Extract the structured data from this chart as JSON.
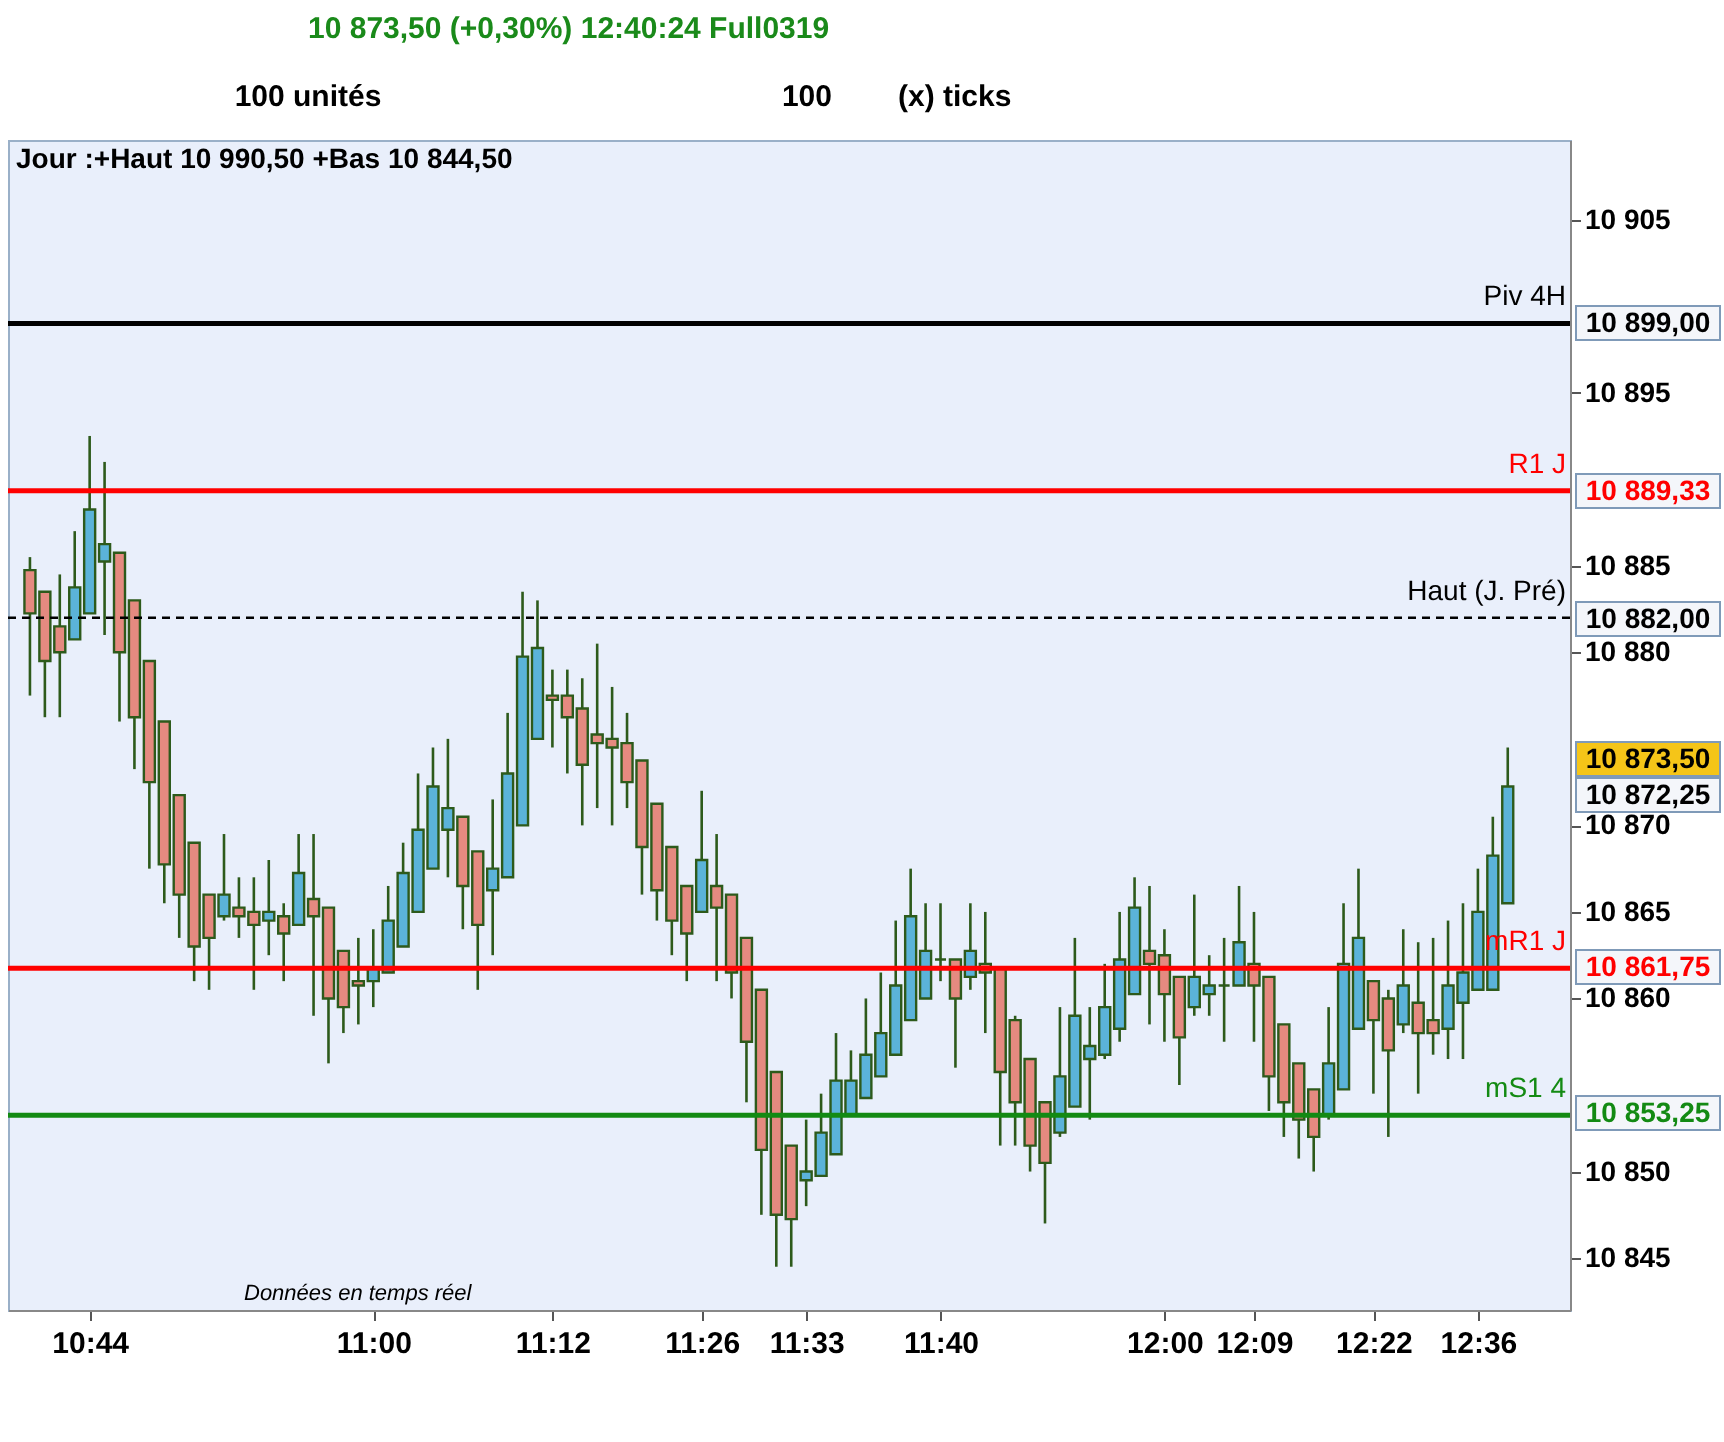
{
  "chart_data": {
    "type": "candlestick",
    "title": "10 873,50 (+0,30%)  12:40:24 Full0319",
    "subtitle": "Jour :+Haut 10 990,50 +Bas 10 844,50",
    "categories": [
      null,
      null,
      null,
      null,
      "10:44",
      null,
      null,
      null,
      null,
      null,
      null,
      null,
      null,
      null,
      null,
      null,
      null,
      null,
      null,
      null,
      null,
      null,
      null,
      "11:00",
      null,
      null,
      null,
      null,
      null,
      null,
      null,
      null,
      null,
      null,
      null,
      "11:12",
      null,
      null,
      null,
      null,
      null,
      null,
      null,
      null,
      null,
      "11:26",
      null,
      null,
      null,
      null,
      null,
      null,
      "11:33",
      null,
      null,
      null,
      null,
      null,
      null,
      null,
      null,
      "11:40",
      null,
      null,
      null,
      null,
      null,
      null,
      null,
      null,
      null,
      null,
      null,
      null,
      null,
      null,
      "12:00",
      null,
      null,
      null,
      null,
      null,
      "12:09",
      null,
      null,
      null,
      null,
      null,
      null,
      null,
      "12:22",
      null,
      null,
      null,
      null,
      null,
      null,
      "12:36",
      null,
      null
    ],
    "ohlc": [
      [
        10884.75,
        10885.5,
        10877.5,
        10882.25
      ],
      [
        10883.5,
        10883.5,
        10876.25,
        10879.5
      ],
      [
        10881.5,
        10884.5,
        10876.25,
        10880
      ],
      [
        10880.75,
        10887,
        10880.75,
        10883.75
      ],
      [
        10882.25,
        10892.5,
        10882.25,
        10888.25
      ],
      [
        10885.25,
        10891,
        10881,
        10886.25
      ],
      [
        10885.75,
        10885.75,
        10876,
        10880
      ],
      [
        10883,
        10883,
        10873.25,
        10876.25
      ],
      [
        10879.5,
        10879.5,
        10867.5,
        10872.5
      ],
      [
        10876,
        10876,
        10865.5,
        10867.75
      ],
      [
        10871.75,
        10871.75,
        10863.5,
        10866
      ],
      [
        10869,
        10869,
        10861,
        10863
      ],
      [
        10866,
        10866,
        10860.5,
        10863.5
      ],
      [
        10864.75,
        10869.5,
        10864.5,
        10866
      ],
      [
        10865.25,
        10867,
        10863.5,
        10864.75
      ],
      [
        10865,
        10867,
        10860.5,
        10864.25
      ],
      [
        10864.5,
        10868,
        10862.5,
        10865
      ],
      [
        10864.75,
        10865.5,
        10861,
        10863.75
      ],
      [
        10864.25,
        10869.5,
        10864.25,
        10867.25
      ],
      [
        10865.75,
        10869.5,
        10859,
        10864.75
      ],
      [
        10865.25,
        10865.25,
        10856.25,
        10860
      ],
      [
        10862.75,
        10862.75,
        10858,
        10859.5
      ],
      [
        10861,
        10863.5,
        10858.5,
        10860.75
      ],
      [
        10861,
        10864,
        10859.5,
        10861.75
      ],
      [
        10861.5,
        10866.5,
        10861.5,
        10864.5
      ],
      [
        10863,
        10869,
        10863,
        10867.25
      ],
      [
        10865,
        10873,
        10865,
        10869.75
      ],
      [
        10867.5,
        10874.5,
        10867.5,
        10872.25
      ],
      [
        10869.75,
        10875,
        10867,
        10871
      ],
      [
        10870.5,
        10870.5,
        10864,
        10866.5
      ],
      [
        10868.5,
        10868.5,
        10860.5,
        10864.25
      ],
      [
        10866.25,
        10871.5,
        10862.5,
        10867.5
      ],
      [
        10867,
        10876.5,
        10867,
        10873
      ],
      [
        10870,
        10883.5,
        10870,
        10879.75
      ],
      [
        10875,
        10883,
        10875,
        10880.25
      ],
      [
        10877.5,
        10879,
        10874.5,
        10877.25
      ],
      [
        10877.5,
        10879,
        10873,
        10876.25
      ],
      [
        10876.75,
        10878.5,
        10870,
        10873.5
      ],
      [
        10875.25,
        10880.5,
        10871,
        10874.75
      ],
      [
        10875,
        10878,
        10870,
        10874.5
      ],
      [
        10874.75,
        10876.5,
        10871,
        10872.5
      ],
      [
        10873.75,
        10873.75,
        10866,
        10868.75
      ],
      [
        10871.25,
        10871.25,
        10864.5,
        10866.25
      ],
      [
        10868.75,
        10868.75,
        10862.5,
        10864.5
      ],
      [
        10866.5,
        10866.5,
        10861,
        10863.75
      ],
      [
        10865,
        10872,
        10865,
        10868
      ],
      [
        10866.5,
        10869.5,
        10861,
        10865.25
      ],
      [
        10866,
        10866,
        10860,
        10861.5
      ],
      [
        10863.5,
        10863.5,
        10854,
        10857.5
      ],
      [
        10860.5,
        10860.5,
        10847.5,
        10851.25
      ],
      [
        10855.75,
        10855.75,
        10844.5,
        10847.5
      ],
      [
        10851.5,
        10851.5,
        10844.5,
        10847.25
      ],
      [
        10849.5,
        10853,
        10848,
        10850
      ],
      [
        10849.75,
        10854.5,
        10849.75,
        10852.25
      ],
      [
        10851,
        10858,
        10851,
        10855.25
      ],
      [
        10853.25,
        10857,
        10853.25,
        10855.25
      ],
      [
        10854.25,
        10860,
        10854.25,
        10856.75
      ],
      [
        10855.5,
        10861.5,
        10855.5,
        10858
      ],
      [
        10856.75,
        10864.5,
        10856.75,
        10860.75
      ],
      [
        10858.75,
        10867.5,
        10858.75,
        10864.75
      ],
      [
        10860,
        10865.5,
        10860,
        10862.75
      ],
      [
        10862.25,
        10865.5,
        10861,
        10862.25
      ],
      [
        10862.25,
        10862.25,
        10856,
        10860
      ],
      [
        10861.25,
        10865.5,
        10860.5,
        10862.75
      ],
      [
        10862,
        10865,
        10858,
        10861.5
      ],
      [
        10861.75,
        10861.75,
        10851.5,
        10855.75
      ],
      [
        10858.75,
        10859,
        10851.5,
        10854
      ],
      [
        10856.5,
        10856.5,
        10850,
        10851.5
      ],
      [
        10854,
        10854,
        10847,
        10850.5
      ],
      [
        10852.25,
        10859.5,
        10852,
        10855.5
      ],
      [
        10853.75,
        10863.5,
        10853.75,
        10859
      ],
      [
        10856.5,
        10859.5,
        10853,
        10857.25
      ],
      [
        10856.75,
        10862,
        10856.5,
        10859.5
      ],
      [
        10858.25,
        10865,
        10857.5,
        10862.25
      ],
      [
        10860.25,
        10867,
        10860.25,
        10865.25
      ],
      [
        10862.75,
        10866.5,
        10858.5,
        10862
      ],
      [
        10862.5,
        10864,
        10857.5,
        10860.25
      ],
      [
        10861.25,
        10861.25,
        10855,
        10857.75
      ],
      [
        10859.5,
        10866,
        10859,
        10861.25
      ],
      [
        10860.25,
        10862.5,
        10859,
        10860.75
      ],
      [
        10860.75,
        10863.5,
        10857.5,
        10860.75
      ],
      [
        10860.75,
        10866.5,
        10860.75,
        10863.25
      ],
      [
        10862,
        10865,
        10857.5,
        10860.75
      ],
      [
        10861.25,
        10861.25,
        10853.5,
        10855.5
      ],
      [
        10858.5,
        10858.5,
        10852,
        10854
      ],
      [
        10856.25,
        10856.25,
        10850.75,
        10853
      ],
      [
        10854.75,
        10854.75,
        10850,
        10852
      ],
      [
        10853.25,
        10859.5,
        10853,
        10856.25
      ],
      [
        10854.75,
        10865.5,
        10854.75,
        10862
      ],
      [
        10858.25,
        10867.5,
        10858.25,
        10863.5
      ],
      [
        10861,
        10861,
        10854.5,
        10858.75
      ],
      [
        10860,
        10860.5,
        10852,
        10857
      ],
      [
        10858.5,
        10864,
        10858,
        10860.75
      ],
      [
        10859.75,
        10863.25,
        10854.5,
        10858
      ],
      [
        10858.75,
        10863.5,
        10856.75,
        10858
      ],
      [
        10858.25,
        10864.5,
        10856.5,
        10860.75
      ],
      [
        10859.75,
        10865.5,
        10856.5,
        10861.5
      ],
      [
        10860.5,
        10867.5,
        10860.5,
        10865
      ],
      [
        10860.5,
        10870.5,
        10860.5,
        10868.25
      ],
      [
        10865.5,
        10874.5,
        10865.5,
        10872.25
      ]
    ],
    "colors": [
      "#e58a80",
      "#e58a80",
      "#e58a80",
      "#5bb3d9",
      "#5bb3d9",
      "#5bb3d9",
      "#e58a80",
      "#e58a80",
      "#e58a80",
      "#e58a80",
      "#e58a80",
      "#e58a80",
      "#e58a80",
      "#5bb3d9",
      "#e58a80",
      "#e58a80",
      "#5bb3d9",
      "#e58a80",
      "#5bb3d9",
      "#e58a80",
      "#e58a80",
      "#e58a80",
      "#e58a80",
      "#5bb3d9",
      "#5bb3d9",
      "#5bb3d9",
      "#5bb3d9",
      "#5bb3d9",
      "#5bb3d9",
      "#e58a80",
      "#e58a80",
      "#5bb3d9",
      "#5bb3d9",
      "#5bb3d9",
      "#5bb3d9",
      "#e58a80",
      "#e58a80",
      "#e58a80",
      "#e58a80",
      "#e58a80",
      "#e58a80",
      "#e58a80",
      "#e58a80",
      "#e58a80",
      "#e58a80",
      "#5bb3d9",
      "#e58a80",
      "#e58a80",
      "#e58a80",
      "#e58a80",
      "#e58a80",
      "#e58a80",
      "#5bb3d9",
      "#5bb3d9",
      "#5bb3d9",
      "#5bb3d9",
      "#5bb3d9",
      "#5bb3d9",
      "#5bb3d9",
      "#5bb3d9",
      "#5bb3d9",
      "#2d5a1b",
      "#e58a80",
      "#5bb3d9",
      "#e58a80",
      "#e58a80",
      "#e58a80",
      "#e58a80",
      "#e58a80",
      "#5bb3d9",
      "#5bb3d9",
      "#5bb3d9",
      "#5bb3d9",
      "#5bb3d9",
      "#5bb3d9",
      "#e58a80",
      "#e58a80",
      "#e58a80",
      "#5bb3d9",
      "#5bb3d9",
      "#2d5a1b",
      "#5bb3d9",
      "#e58a80",
      "#e58a80",
      "#e58a80",
      "#e58a80",
      "#e58a80",
      "#5bb3d9",
      "#5bb3d9",
      "#5bb3d9",
      "#e58a80",
      "#e58a80",
      "#5bb3d9",
      "#e58a80",
      "#e58a80",
      "#5bb3d9",
      "#5bb3d9",
      "#5bb3d9",
      "#5bb3d9",
      "#5bb3d9"
    ],
    "ylim": [
      10842,
      10909.6
    ],
    "yticks": [
      {
        "value": 10845,
        "label": "10 845"
      },
      {
        "value": 10850,
        "label": "10 850"
      },
      {
        "value": 10860,
        "label": "10 860"
      },
      {
        "value": 10865,
        "label": "10 865"
      },
      {
        "value": 10870,
        "label": "10 870"
      },
      {
        "value": 10880,
        "label": "10 880"
      },
      {
        "value": 10885,
        "label": "10 885"
      },
      {
        "value": 10895,
        "label": "10 895"
      },
      {
        "value": 10905,
        "label": "10 905"
      }
    ],
    "grid": false,
    "ref_lines": [
      {
        "axis": "y",
        "value": 10899,
        "label": "Piv 4H",
        "color": "#000000",
        "line_style": "solid"
      },
      {
        "axis": "y",
        "value": 10889.33,
        "label": "R1 J",
        "color": "#ff0000",
        "line_style": "solid"
      },
      {
        "axis": "y",
        "value": 10882,
        "label": "Haut (J. Pré)",
        "color": "#000000",
        "line_style": "dashed"
      },
      {
        "axis": "y",
        "value": 10861.75,
        "label": "mR1 J",
        "color": "#ff0000",
        "line_style": "solid"
      },
      {
        "axis": "y",
        "value": 10853.25,
        "label": "mS1 4",
        "color": "#138a13",
        "line_style": "solid"
      }
    ],
    "annotations": [
      "100 unités",
      "100",
      "(x) ticks",
      "Données en temps réel",
      "10 899,00",
      "10 889,33",
      "10 882,00",
      "10 873,50",
      "10 872,25",
      "10 861,75",
      "10 853,25"
    ]
  }
}
